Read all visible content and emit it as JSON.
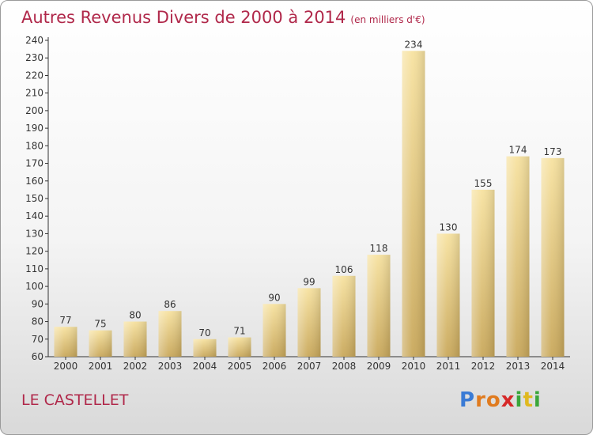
{
  "header": {
    "title": "Autres Revenus Divers de 2000 à 2014",
    "subtitle": "(en milliers d'€)"
  },
  "footer": {
    "place": "LE CASTELLET",
    "logo": [
      "P",
      "r",
      "o",
      "x",
      "i",
      "t",
      "i"
    ]
  },
  "colors": {
    "title": "#b0284a",
    "bar_light": "#f7e2a0",
    "bar_dark": "#c9a85b",
    "logo": [
      "#3a7bd5",
      "#e07b1f",
      "#e07b1f",
      "#d62828",
      "#3aa63a",
      "#e0b91f",
      "#3aa63a"
    ]
  },
  "chart_data": {
    "type": "bar",
    "title": "Autres Revenus Divers de 2000 à 2014",
    "subtitle": "(en milliers d'€)",
    "categories": [
      "2000",
      "2001",
      "2002",
      "2003",
      "2004",
      "2005",
      "2006",
      "2007",
      "2008",
      "2009",
      "2010",
      "2011",
      "2012",
      "2013",
      "2014"
    ],
    "values": [
      77,
      75,
      80,
      86,
      70,
      71,
      90,
      99,
      106,
      118,
      234,
      130,
      155,
      174,
      173
    ],
    "ylim": [
      60,
      240
    ],
    "yticks": [
      60,
      70,
      80,
      90,
      100,
      110,
      120,
      130,
      140,
      150,
      160,
      170,
      180,
      190,
      200,
      210,
      220,
      230,
      240
    ],
    "grid": false,
    "xlabel": "",
    "ylabel": ""
  }
}
